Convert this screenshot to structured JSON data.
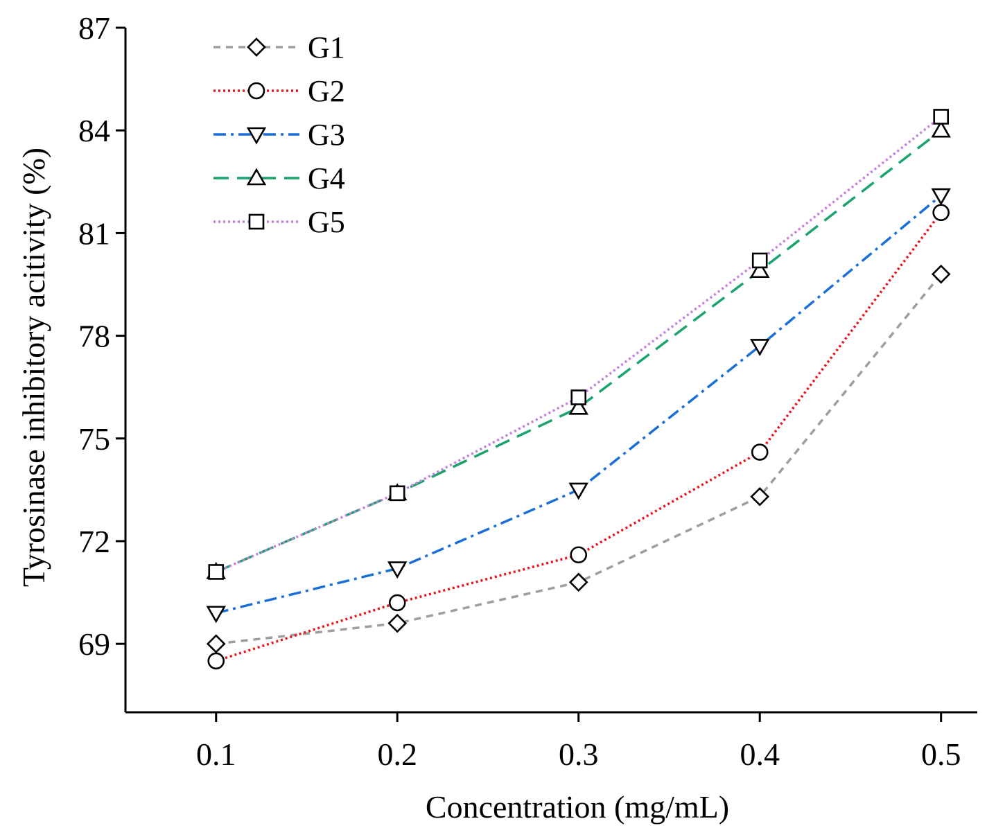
{
  "chart_data": {
    "type": "line",
    "title": "",
    "xlabel": "Concentration (mg/mL)",
    "ylabel": "Tyrosinase inhibitory acitivity (%)",
    "x": [
      0.1,
      0.2,
      0.3,
      0.4,
      0.5
    ],
    "x_tick_labels": [
      "0.1",
      "0.2",
      "0.3",
      "0.4",
      "0.5"
    ],
    "y_ticks": [
      69,
      72,
      75,
      78,
      81,
      84,
      87
    ],
    "ylim": [
      67,
      87
    ],
    "xlim": [
      0.05,
      0.52
    ],
    "grid": false,
    "legend_position": "top-left",
    "series": [
      {
        "name": "G1",
        "values": [
          69.0,
          69.6,
          70.8,
          73.3,
          79.8
        ],
        "color": "#9e9e9e",
        "marker": "diamond",
        "line_style": "dashed"
      },
      {
        "name": "G2",
        "values": [
          68.5,
          70.2,
          71.6,
          74.6,
          81.6
        ],
        "color": "#e8141a",
        "marker": "circle",
        "line_style": "dotted"
      },
      {
        "name": "G3",
        "values": [
          69.9,
          71.2,
          73.5,
          77.7,
          82.1
        ],
        "color": "#1a6fd6",
        "marker": "triangle-down",
        "line_style": "dash-dot"
      },
      {
        "name": "G4",
        "values": [
          71.1,
          73.4,
          75.9,
          79.9,
          84.0
        ],
        "color": "#1aa36a",
        "marker": "triangle-up",
        "line_style": "long-dash"
      },
      {
        "name": "G5",
        "values": [
          71.1,
          73.4,
          76.2,
          80.2,
          84.4
        ],
        "color": "#c47fe0",
        "marker": "square",
        "line_style": "dotted"
      }
    ]
  }
}
